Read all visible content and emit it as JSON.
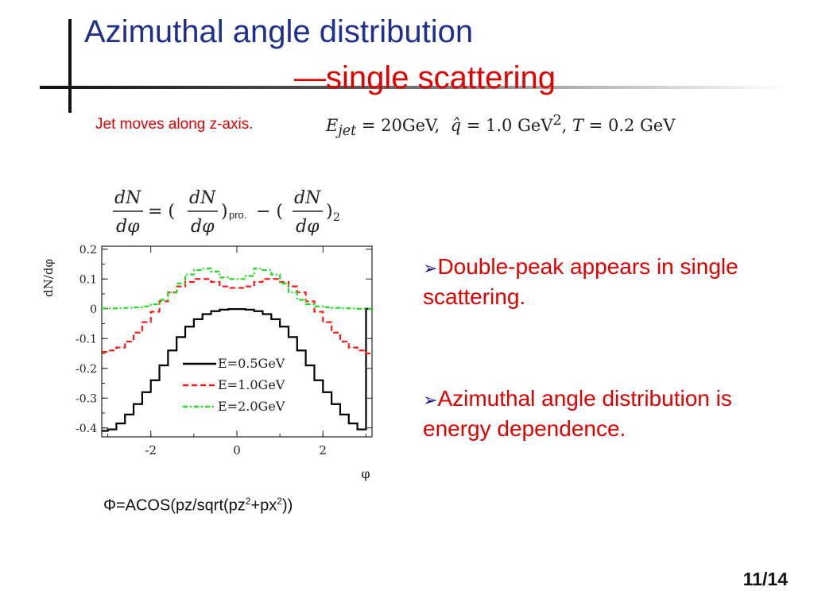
{
  "slide": {
    "title_line1": "Azimuthal angle distribution",
    "title_line2": "—single scattering",
    "note": "Jet moves along z-axis.",
    "params": {
      "ejet": "= 20GeV,",
      "qhat": "= 1.0",
      "qhat_unit": "GeV",
      "t_eq": "= 0.2 GeV"
    },
    "formula": {
      "dN": "dN",
      "dphi": "dφ",
      "eq": "= (",
      "mid": ") − (",
      "end": ")",
      "sub_pro": "pro.",
      "sub_2": "2"
    },
    "bullets": [
      "Double-peak appears in single scattering.",
      "Azimuthal angle distribution is energy dependence."
    ],
    "phi_definition": {
      "a": "Φ=ACOS(pz/sqrt(pz",
      "sup1": "2",
      "b": "+px",
      "sup2": "2",
      "c": "))"
    },
    "page_number": "11/14"
  },
  "colors": {
    "title_blue": "#1f2f8f",
    "accent_red": "#e00000",
    "series_black": "#000000",
    "series_red": "#ff1a1a",
    "series_green": "#22dd22"
  },
  "chart_data": {
    "type": "line",
    "style": "step",
    "xlabel": "φ",
    "ylabel": "dN/dφ",
    "xlim": [
      -3.14,
      3.14
    ],
    "ylim": [
      -0.43,
      0.21
    ],
    "x_ticks": [
      "-2",
      "0",
      "2"
    ],
    "y_ticks": [
      "0.2",
      "0.1",
      "0",
      "-0.1",
      "-0.2",
      "-0.3",
      "-0.4"
    ],
    "legend_position": "lower-center",
    "series": [
      {
        "name": "E=0.5GeV",
        "color": "#000000",
        "dash": "solid",
        "x": [
          -3.1,
          -2.9,
          -2.7,
          -2.5,
          -2.3,
          -2.1,
          -1.9,
          -1.7,
          -1.5,
          -1.3,
          -1.1,
          -0.9,
          -0.7,
          -0.5,
          -0.3,
          -0.1,
          0.1,
          0.3,
          0.5,
          0.7,
          0.9,
          1.1,
          1.3,
          1.5,
          1.7,
          1.9,
          2.1,
          2.3,
          2.5,
          2.7,
          2.9,
          3.1
        ],
        "y": [
          -0.41,
          -0.405,
          -0.385,
          -0.355,
          -0.32,
          -0.28,
          -0.24,
          -0.19,
          -0.14,
          -0.095,
          -0.06,
          -0.035,
          -0.018,
          -0.008,
          -0.003,
          -0.001,
          -0.001,
          -0.003,
          -0.008,
          -0.018,
          -0.035,
          -0.06,
          -0.095,
          -0.14,
          -0.19,
          -0.24,
          -0.28,
          -0.32,
          -0.355,
          -0.385,
          -0.405,
          0.0
        ]
      },
      {
        "name": "E=1.0GeV",
        "color": "#ff1a1a",
        "dash": "dashed",
        "x": [
          -3.1,
          -2.9,
          -2.7,
          -2.5,
          -2.3,
          -2.1,
          -1.9,
          -1.7,
          -1.5,
          -1.3,
          -1.1,
          -0.9,
          -0.7,
          -0.5,
          -0.3,
          -0.1,
          0.1,
          0.3,
          0.5,
          0.7,
          0.9,
          1.1,
          1.3,
          1.5,
          1.7,
          1.9,
          2.1,
          2.3,
          2.5,
          2.7,
          2.9,
          3.1
        ],
        "y": [
          -0.145,
          -0.14,
          -0.13,
          -0.11,
          -0.08,
          -0.045,
          -0.01,
          0.025,
          0.055,
          0.075,
          0.09,
          0.1,
          0.1,
          0.09,
          0.075,
          0.07,
          0.07,
          0.075,
          0.09,
          0.1,
          0.1,
          0.09,
          0.075,
          0.055,
          0.025,
          -0.01,
          -0.045,
          -0.08,
          -0.11,
          -0.13,
          -0.14,
          -0.15
        ]
      },
      {
        "name": "E=2.0GeV",
        "color": "#22dd22",
        "dash": "dashdot",
        "x": [
          -3.1,
          -2.9,
          -2.7,
          -2.5,
          -2.3,
          -2.1,
          -1.9,
          -1.7,
          -1.5,
          -1.3,
          -1.1,
          -0.9,
          -0.7,
          -0.5,
          -0.3,
          -0.1,
          0.1,
          0.3,
          0.5,
          0.7,
          0.9,
          1.1,
          1.3,
          1.5,
          1.7,
          1.9,
          2.1,
          2.3,
          2.5,
          2.7,
          2.9,
          3.1
        ],
        "y": [
          0.001,
          0.001,
          0.002,
          0.003,
          0.005,
          0.008,
          0.015,
          0.03,
          0.055,
          0.085,
          0.115,
          0.13,
          0.135,
          0.125,
          0.105,
          0.1,
          0.1,
          0.11,
          0.135,
          0.13,
          0.115,
          0.085,
          0.055,
          0.03,
          0.015,
          0.008,
          0.005,
          0.003,
          0.002,
          0.001,
          0.0,
          0.0
        ]
      }
    ]
  }
}
